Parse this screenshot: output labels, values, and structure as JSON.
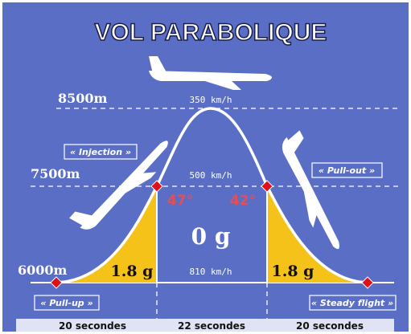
{
  "title": "VOL PARABOLIQUE",
  "altitudes": [
    "8500m",
    "7500m",
    "6000m"
  ],
  "speeds": [
    "350 km/h",
    "500 km/h",
    "810 km/h"
  ],
  "phases": [
    "« Injection »",
    "« Pull-out »",
    "« Pull-up »",
    "« Steady flight »"
  ],
  "angles": [
    "47°",
    "42°"
  ],
  "gravity": {
    "zero": "0 g",
    "left": "1.8 g",
    "right": "1.8 g"
  },
  "durations": [
    "20 secondes",
    "22 secondes",
    "20 secondes"
  ]
}
